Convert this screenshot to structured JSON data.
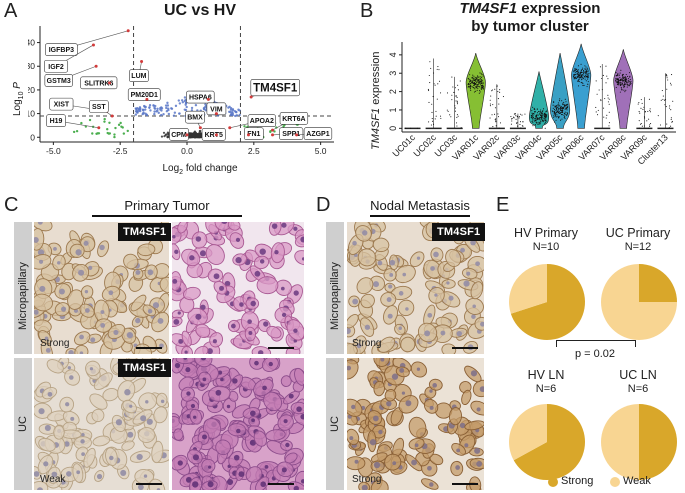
{
  "panels": {
    "a": {
      "letter": "A",
      "title": "UC vs HV",
      "ylabel_main": "Log",
      "ylabel_sub": "10",
      "ylabel_p": "P",
      "xlabel_main": "Log",
      "xlabel_sub": "2",
      "xlabel_rest": " fold change"
    },
    "b": {
      "letter": "B",
      "title_gene": "TM4SF1",
      "title_rest": " expression",
      "title_line2": "by tumor cluster",
      "ylabel_gene": "TM4SF1",
      "ylabel_rest": " expression"
    },
    "c": {
      "letter": "C",
      "header": "Primary Tumor",
      "row1": "Micropapillary",
      "row2": "UC",
      "badge1": "TM4SF1",
      "badge2": "TM4SF1",
      "label1": "Strong",
      "label2": "Weak"
    },
    "d": {
      "letter": "D",
      "header": "Nodal Metastasis",
      "row1": "Micropapillary",
      "row2": "UC",
      "badge1": "TM4SF1",
      "label1": "Strong",
      "label2": "Strong"
    },
    "e": {
      "letter": "E",
      "pvalue": "p = 0.02",
      "legend_strong": "Strong",
      "legend_weak": "Weak"
    }
  },
  "chart_data": [
    {
      "id": "volcano",
      "type": "scatter",
      "title": "UC vs HV",
      "xlabel": "Log2 fold change",
      "ylabel": "Log10 P",
      "xlim": [
        -5.5,
        5.5
      ],
      "ylim": [
        -2,
        47
      ],
      "xticks": [
        -5.0,
        -2.5,
        0.0,
        2.5,
        5.0
      ],
      "xtick_labels": [
        "-5.0",
        "-2.5",
        "0.0",
        "2.5",
        "5.0"
      ],
      "yticks": [
        0,
        10,
        20,
        30,
        40
      ],
      "ytick_labels": [
        "0",
        "10",
        "20",
        "30",
        "40"
      ],
      "thresholds": {
        "fc": [
          -2,
          2
        ],
        "p": 9
      },
      "colors": {
        "ns": "#333333",
        "p_only": "#5b78c8",
        "fc_only": "#4caf50",
        "both": "#d23b3b"
      },
      "labeled_genes": [
        {
          "gene": "IGFBP3",
          "x": -2.2,
          "y": 45.0
        },
        {
          "gene": "IGF2",
          "x": -3.5,
          "y": 39.0
        },
        {
          "gene": "LUM",
          "x": -1.7,
          "y": 32.0
        },
        {
          "gene": "GSTM3",
          "x": -3.4,
          "y": 30.0
        },
        {
          "gene": "SLITRK6",
          "x": -2.9,
          "y": 23.0
        },
        {
          "gene": "PM20D1",
          "x": -1.5,
          "y": 16.0
        },
        {
          "gene": "HSPA6",
          "x": 0.8,
          "y": 16.0
        },
        {
          "gene": "XIST",
          "x": -3.0,
          "y": 11.0
        },
        {
          "gene": "SST",
          "x": -2.8,
          "y": 9.0
        },
        {
          "gene": "TM4SF1",
          "x": 2.4,
          "y": 17.0
        },
        {
          "gene": "VIM",
          "x": 1.1,
          "y": 10.0
        },
        {
          "gene": "H19",
          "x": -3.3,
          "y": 4.0
        },
        {
          "gene": "BMX",
          "x": 0.5,
          "y": 4.0
        },
        {
          "gene": "APOA2",
          "x": 1.6,
          "y": 4.0
        },
        {
          "gene": "KRT6A",
          "x": 3.2,
          "y": 3.0
        },
        {
          "gene": "CPM",
          "x": 0.0,
          "y": 1.0
        },
        {
          "gene": "KRT5",
          "x": 1.1,
          "y": 1.0
        },
        {
          "gene": "FN1",
          "x": 2.3,
          "y": 1.0
        },
        {
          "gene": "SPP1",
          "x": 3.2,
          "y": 1.0
        },
        {
          "gene": "AZGP1",
          "x": 4.1,
          "y": 1.0
        }
      ],
      "label_boxes": [
        {
          "gene": "IGFBP3",
          "lx": -4.7,
          "ly": 37.0
        },
        {
          "gene": "IGF2",
          "lx": -4.9,
          "ly": 30.0
        },
        {
          "gene": "LUM",
          "lx": -1.8,
          "ly": 26.0
        },
        {
          "gene": "GSTM3",
          "lx": -4.8,
          "ly": 24.0
        },
        {
          "gene": "SLITRK6",
          "lx": -3.3,
          "ly": 23.0
        },
        {
          "gene": "PM20D1",
          "lx": -1.6,
          "ly": 18.0
        },
        {
          "gene": "HSPA6",
          "lx": 0.5,
          "ly": 17.0
        },
        {
          "gene": "XIST",
          "lx": -4.7,
          "ly": 14.0
        },
        {
          "gene": "SST",
          "lx": -3.3,
          "ly": 13.0
        },
        {
          "gene": "TM4SF1",
          "lx": 3.3,
          "ly": 21.0
        },
        {
          "gene": "VIM",
          "lx": 1.1,
          "ly": 12.0
        },
        {
          "gene": "H19",
          "lx": -4.9,
          "ly": 7.0
        },
        {
          "gene": "BMX",
          "lx": 0.3,
          "ly": 8.5
        },
        {
          "gene": "APOA2",
          "lx": 2.8,
          "ly": 7.0
        },
        {
          "gene": "KRT6A",
          "lx": 4.0,
          "ly": 8.0
        },
        {
          "gene": "CPM",
          "lx": -0.3,
          "ly": 1.2
        },
        {
          "gene": "KRT5",
          "lx": 1.0,
          "ly": 1.2
        },
        {
          "gene": "FN1",
          "lx": 2.5,
          "ly": 1.5
        },
        {
          "gene": "SPP1",
          "lx": 3.9,
          "ly": 1.5
        },
        {
          "gene": "AZGP1",
          "lx": 4.9,
          "ly": 1.5
        }
      ]
    },
    {
      "id": "violin",
      "type": "violin",
      "title": "TM4SF1 expression by tumor cluster",
      "ylabel": "TM4SF1 expression",
      "ylim": [
        -0.2,
        4.7
      ],
      "yticks": [
        0,
        1,
        2,
        3,
        4
      ],
      "ytick_labels": [
        "0",
        "1",
        "2",
        "3",
        "4"
      ],
      "categories": [
        "UC01c",
        "UC02c",
        "UC03c",
        "VAR01c",
        "VAR02c",
        "VAR03c",
        "VAR04c",
        "VAR05c",
        "VAR06c",
        "VAR07c",
        "VAR08c",
        "VAR09c",
        "Cluster13"
      ],
      "max_values": [
        0.0,
        3.8,
        2.8,
        4.1,
        2.4,
        0.8,
        3.1,
        4.1,
        4.6,
        3.5,
        4.3,
        1.7,
        3.0
      ],
      "median_values": [
        0.0,
        0.0,
        0.0,
        2.5,
        0.0,
        0.0,
        0.6,
        1.0,
        2.9,
        0.0,
        2.6,
        0.0,
        0.0
      ],
      "colors": [
        "#222222",
        "#222222",
        "#222222",
        "#86bf33",
        "#222222",
        "#222222",
        "#30b0a8",
        "#3aa0c4",
        "#3a9fd0",
        "#222222",
        "#a070b8",
        "#222222",
        "#222222"
      ]
    },
    {
      "id": "pie-hv-primary",
      "type": "pie",
      "title": "HV Primary",
      "n_label": "N=10",
      "slices": [
        {
          "name": "Strong",
          "value": 70
        },
        {
          "name": "Weak",
          "value": 30
        }
      ]
    },
    {
      "id": "pie-uc-primary",
      "type": "pie",
      "title": "UC Primary",
      "n_label": "N=12",
      "slices": [
        {
          "name": "Strong",
          "value": 25
        },
        {
          "name": "Weak",
          "value": 75
        }
      ]
    },
    {
      "id": "pie-hv-ln",
      "type": "pie",
      "title": "HV LN",
      "n_label": "N=6",
      "slices": [
        {
          "name": "Strong",
          "value": 67
        },
        {
          "name": "Weak",
          "value": 33
        }
      ]
    },
    {
      "id": "pie-uc-ln",
      "type": "pie",
      "title": "UC LN",
      "n_label": "N=6",
      "slices": [
        {
          "name": "Strong",
          "value": 50
        },
        {
          "name": "Weak",
          "value": 50
        }
      ]
    }
  ],
  "pie_colors": {
    "strong": "#d9a72a",
    "weak": "#f8d592"
  },
  "tissue_colors": {
    "dab_light": "#e4d4bd",
    "dab_dark": "#a07a50",
    "he_pink": "#c98bb5",
    "he_purple": "#8a4f8f",
    "bg": "#efe9e2"
  }
}
